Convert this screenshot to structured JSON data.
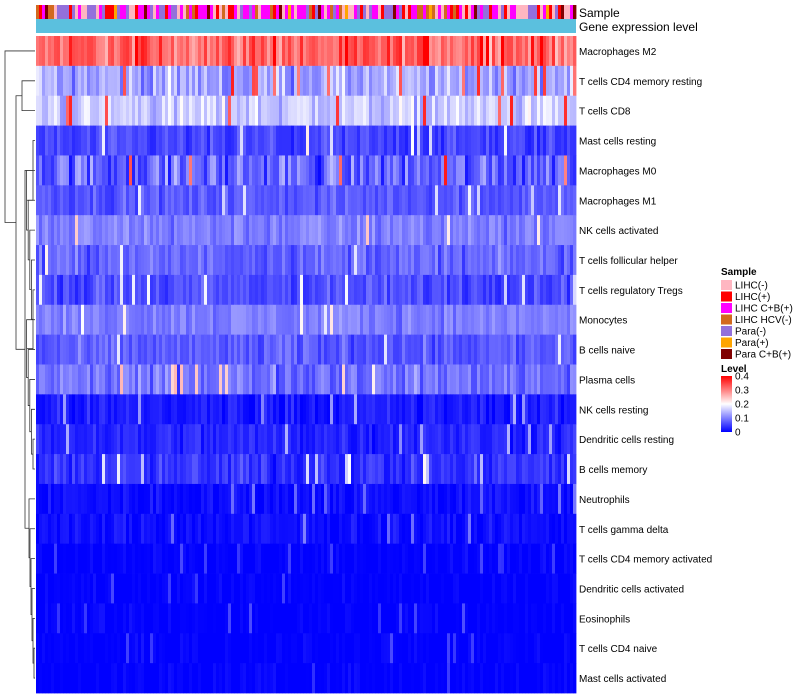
{
  "chart_data": {
    "type": "heatmap",
    "title": "",
    "annotation_tracks": [
      "Sample",
      "Gene expression level"
    ],
    "rows": [
      {
        "label": "Macrophages M2",
        "mean": 0.32,
        "spread": 0.09
      },
      {
        "label": "T cells CD4 memory resting",
        "mean": 0.13,
        "spread": 0.08
      },
      {
        "label": "T cells CD8",
        "mean": 0.16,
        "spread": 0.07
      },
      {
        "label": "Mast cells resting",
        "mean": 0.05,
        "spread": 0.05
      },
      {
        "label": "Macrophages M0",
        "mean": 0.08,
        "spread": 0.1
      },
      {
        "label": "Macrophages M1",
        "mean": 0.07,
        "spread": 0.04
      },
      {
        "label": "NK cells activated",
        "mean": 0.1,
        "spread": 0.05
      },
      {
        "label": "T cells follicular helper",
        "mean": 0.08,
        "spread": 0.05
      },
      {
        "label": "T cells regulatory  Tregs",
        "mean": 0.06,
        "spread": 0.05
      },
      {
        "label": "Monocytes",
        "mean": 0.1,
        "spread": 0.04
      },
      {
        "label": "B cells naive",
        "mean": 0.07,
        "spread": 0.05
      },
      {
        "label": "Plasma cells",
        "mean": 0.09,
        "spread": 0.06
      },
      {
        "label": "NK cells resting",
        "mean": 0.02,
        "spread": 0.04
      },
      {
        "label": "Dendritic cells resting",
        "mean": 0.03,
        "spread": 0.04
      },
      {
        "label": "B cells memory",
        "mean": 0.04,
        "spread": 0.05
      },
      {
        "label": "Neutrophils",
        "mean": 0.01,
        "spread": 0.03
      },
      {
        "label": "T cells gamma delta",
        "mean": 0.01,
        "spread": 0.03
      },
      {
        "label": "T cells CD4 memory activated",
        "mean": 0.0,
        "spread": 0.02
      },
      {
        "label": "Dendritic cells activated",
        "mean": 0.0,
        "spread": 0.02
      },
      {
        "label": "Eosinophils",
        "mean": 0.0,
        "spread": 0.02
      },
      {
        "label": "T cells CD4 naive",
        "mean": 0.0,
        "spread": 0.02
      },
      {
        "label": "Mast cells activated",
        "mean": 0.0,
        "spread": 0.02
      }
    ],
    "n_samples": 180,
    "sample_legend": {
      "title": "Sample",
      "entries": [
        {
          "name": "LIHC(-)",
          "color": "#ffb6c1"
        },
        {
          "name": "LIHC(+)",
          "color": "#ff0000"
        },
        {
          "name": "LIHC C+B(+)",
          "color": "#ff00ff"
        },
        {
          "name": "LIHC HCV(-)",
          "color": "#d2691e"
        },
        {
          "name": "Para(-)",
          "color": "#9370db"
        },
        {
          "name": "Para(+)",
          "color": "#ffa500"
        },
        {
          "name": "Para C+B(+)",
          "color": "#800000"
        }
      ]
    },
    "level_legend": {
      "title": "Level",
      "ticks": [
        {
          "label": "0.4",
          "value": 0.4
        },
        {
          "label": "0.3",
          "value": 0.3
        },
        {
          "label": "0.2",
          "value": 0.2
        },
        {
          "label": "0.1",
          "value": 0.1
        },
        {
          "label": "0",
          "value": 0.0
        }
      ],
      "range": [
        0,
        0.4
      ],
      "colors": [
        "#0000ff",
        "#ffffff",
        "#ff0000"
      ]
    },
    "expression_bar_color": "#5bc0de"
  }
}
